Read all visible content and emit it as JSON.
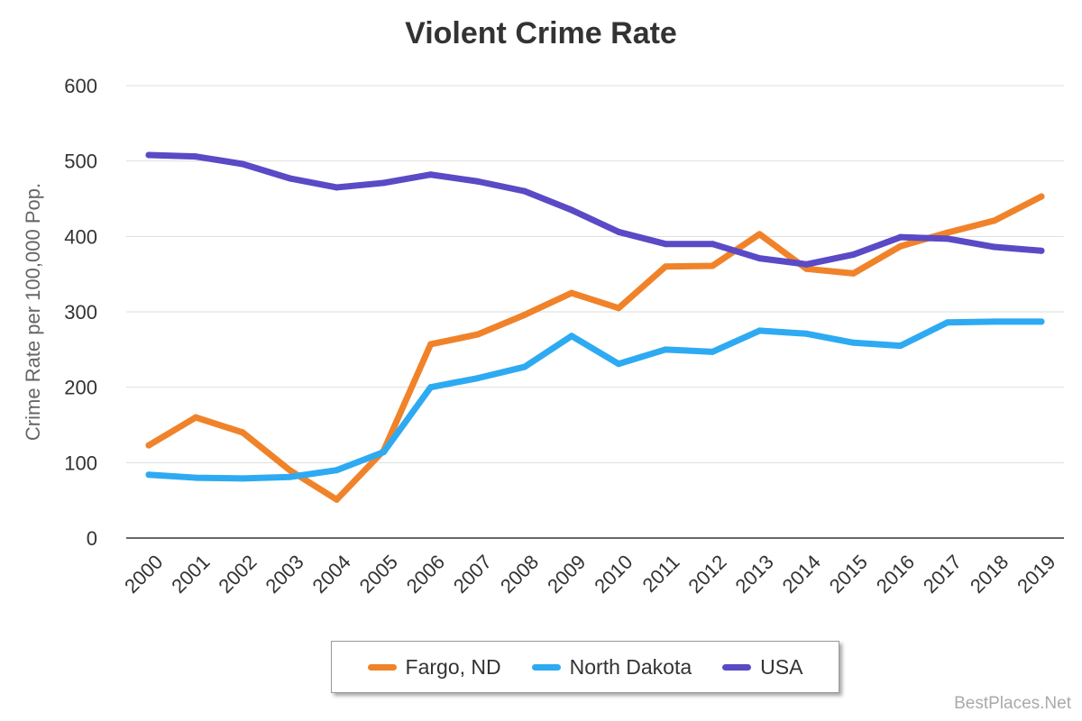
{
  "chart_data": {
    "type": "line",
    "title": "Violent Crime Rate",
    "xlabel": "",
    "ylabel": "Crime Rate per 100,000 Pop.",
    "ylim": [
      0,
      600
    ],
    "yticks": [
      0,
      100,
      200,
      300,
      400,
      500,
      600
    ],
    "grid": true,
    "legend_position": "bottom",
    "x": [
      "2000",
      "2001",
      "2002",
      "2003",
      "2004",
      "2005",
      "2006",
      "2007",
      "2008",
      "2009",
      "2010",
      "2011",
      "2012",
      "2013",
      "2014",
      "2015",
      "2016",
      "2017",
      "2018",
      "2019"
    ],
    "series": [
      {
        "name": "Fargo, ND",
        "color": "#f0832a",
        "values": [
          123,
          160,
          140,
          90,
          51,
          116,
          257,
          270,
          296,
          325,
          305,
          360,
          361,
          403,
          357,
          351,
          387,
          405,
          421,
          453
        ]
      },
      {
        "name": "North Dakota",
        "color": "#2eaaf2",
        "values": [
          84,
          80,
          79,
          81,
          90,
          114,
          200,
          212,
          227,
          268,
          231,
          250,
          247,
          275,
          271,
          259,
          255,
          286,
          287,
          287
        ]
      },
      {
        "name": "USA",
        "color": "#5a4ac6",
        "values": [
          508,
          506,
          496,
          477,
          465,
          471,
          482,
          473,
          460,
          435,
          406,
          390,
          390,
          371,
          363,
          376,
          399,
          397,
          386,
          381
        ]
      }
    ]
  },
  "watermark": "BestPlaces.Net"
}
